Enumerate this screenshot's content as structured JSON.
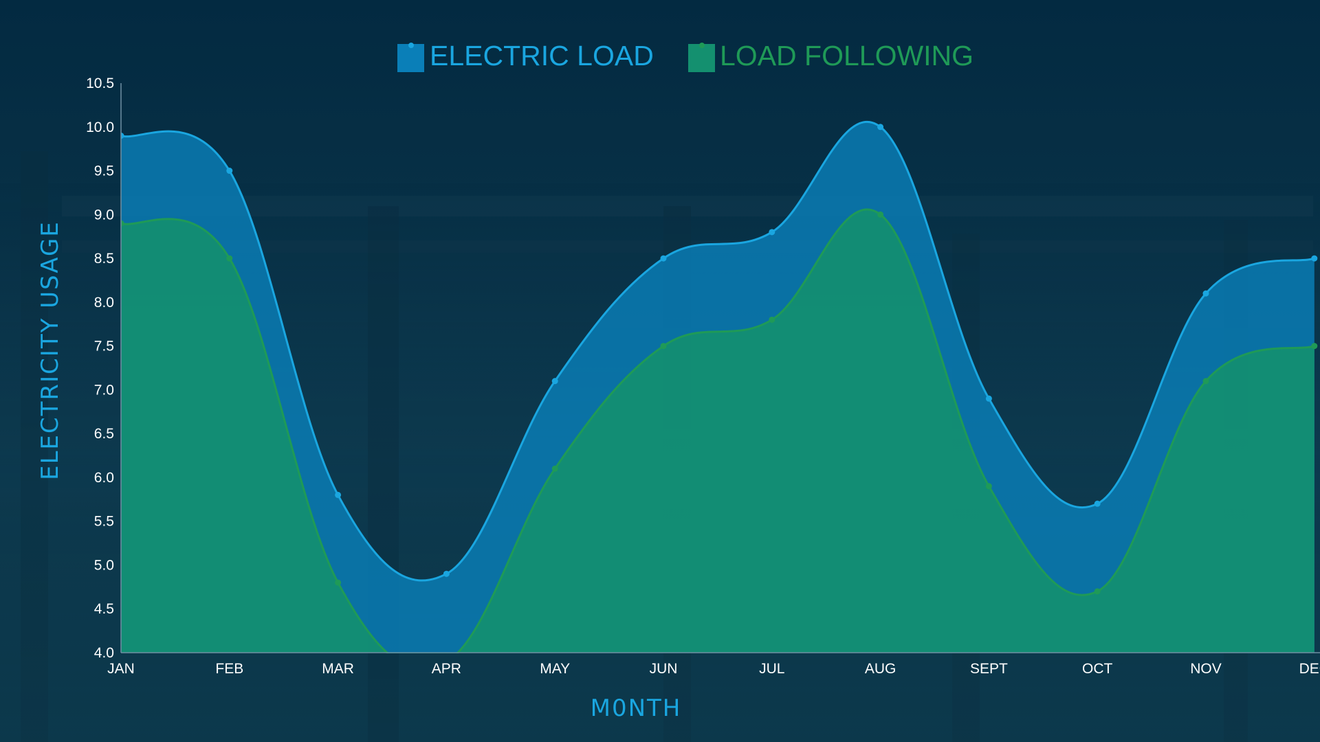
{
  "chart_data": {
    "type": "area",
    "title": "",
    "xlabel": "M0NTH",
    "ylabel": "ELECTRICITY USAGE",
    "categories": [
      "JAN",
      "FEB",
      "MAR",
      "APR",
      "MAY",
      "JUN",
      "JUL",
      "AUG",
      "SEPT",
      "OCT",
      "NOV",
      "DEC"
    ],
    "ylim": [
      4.0,
      10.5
    ],
    "yticks": [
      "4.0",
      "4.5",
      "5.0",
      "5.5",
      "6.0",
      "6.5",
      "7.0",
      "7.5",
      "8.0",
      "8.5",
      "9.0",
      "9.5",
      "10.0",
      "10.5"
    ],
    "grid": false,
    "legend_position": "top-center",
    "series": [
      {
        "name": "ELECTRIC LOAD",
        "color": "#1aa6e0",
        "fill": "#0a7fb8",
        "values": [
          9.9,
          9.5,
          5.8,
          4.9,
          7.1,
          8.5,
          8.8,
          10.0,
          6.9,
          5.7,
          8.1,
          8.5
        ]
      },
      {
        "name": "LOAD FOLLOWING",
        "color": "#1f9a57",
        "fill": "#14906f",
        "values": [
          8.9,
          8.5,
          4.8,
          3.9,
          6.1,
          7.5,
          7.8,
          9.0,
          5.9,
          4.7,
          7.1,
          7.5
        ]
      }
    ]
  }
}
